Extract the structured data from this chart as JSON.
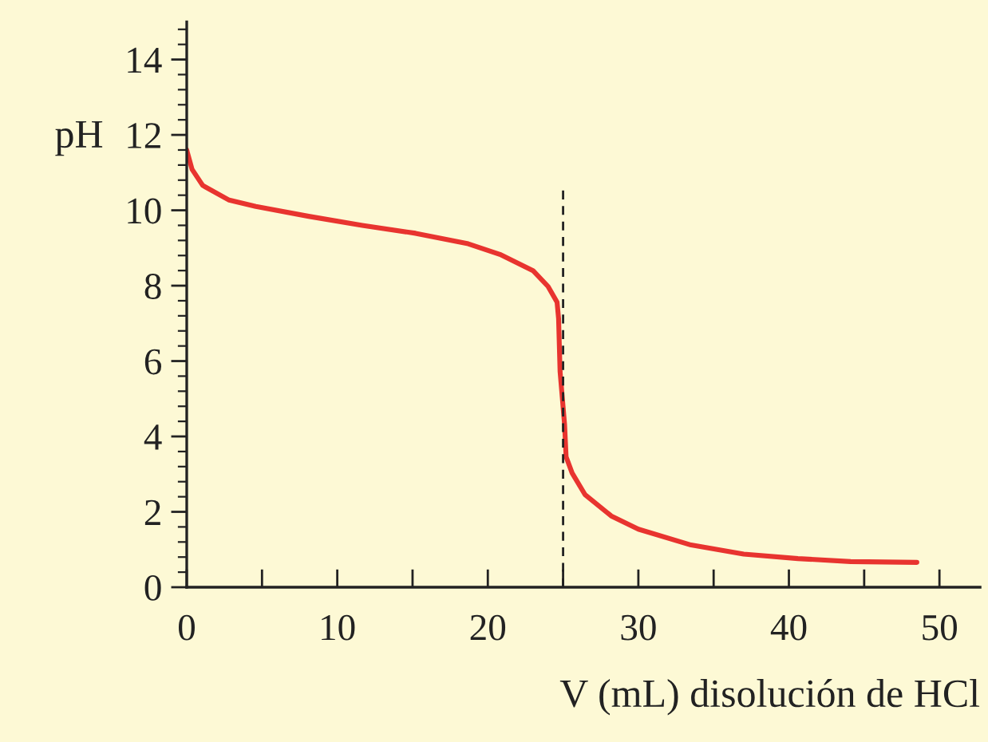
{
  "chart_data": {
    "type": "line",
    "xlabel": "V (mL) disolución de HCl",
    "ylabel": "pH",
    "series": [
      {
        "color": "#e8342f",
        "x": [
          0,
          0.35,
          1.06,
          2.82,
          4.59,
          8.1,
          11.66,
          15.2,
          18.7,
          20.8,
          23.0,
          24.0,
          24.6,
          24.7,
          24.8,
          25.1,
          25.2,
          25.6,
          26.45,
          28.2,
          30.0,
          33.5,
          37.0,
          40.6,
          44.1,
          48.5
        ],
        "values": [
          11.6,
          11.09,
          10.66,
          10.27,
          10.1,
          9.84,
          9.6,
          9.39,
          9.11,
          8.83,
          8.4,
          7.98,
          7.56,
          7.13,
          5.72,
          4.31,
          3.46,
          3.03,
          2.46,
          1.89,
          1.54,
          1.12,
          0.88,
          0.76,
          0.68,
          0.66
        ]
      }
    ],
    "xlim": [
      0,
      52.7
    ],
    "ylim": [
      0,
      15
    ],
    "xticks": [
      0,
      {
        "value": 5,
        "label": null
      },
      10,
      {
        "value": 15,
        "label": null
      },
      20,
      {
        "value": 25,
        "label": null
      },
      30,
      {
        "value": 35,
        "label": null
      },
      40,
      {
        "value": 45,
        "label": null
      },
      50
    ],
    "yticks": [
      0,
      2,
      4,
      6,
      8,
      10,
      12,
      14
    ],
    "ref_lines": [
      {
        "axis": "x",
        "value": 25,
        "color": "#222222",
        "line_style": "dashed"
      }
    ],
    "grid": false,
    "legend": false,
    "marker": "none",
    "line_style": "solid"
  }
}
